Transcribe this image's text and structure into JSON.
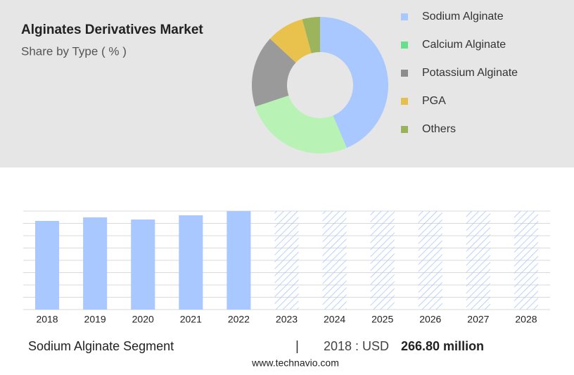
{
  "chart_data": [
    {
      "type": "pie",
      "title": "Alginates Derivatives Market",
      "subtitle": "Share by Type ( % )",
      "donut": true,
      "categories": [
        "Sodium Alginate",
        "Calcium Alginate",
        "Potassium Alginate",
        "PGA",
        "Others"
      ],
      "values": [
        43.6,
        26.3,
        17,
        8.9,
        4.2
      ],
      "colors": [
        "#a8c8ff",
        "#b8f2b4",
        "#9a9a9a",
        "#e8c24c",
        "#9cb45c"
      ],
      "legend_colors": [
        "#a8c8ff",
        "#66e08e",
        "#8c8c8c",
        "#e6c04c",
        "#9ab35a"
      ],
      "legend": "right"
    },
    {
      "type": "bar",
      "title": "Sodium Alginate Segment",
      "categories": [
        "2018",
        "2019",
        "2020",
        "2021",
        "2022",
        "2023",
        "2024",
        "2025",
        "2026",
        "2027",
        "2028"
      ],
      "values": [
        266.8,
        277.4,
        271.0,
        283.7,
        296.4,
        null,
        null,
        null,
        null,
        null,
        null
      ],
      "value_labels": [
        "266.80 million",
        null,
        null,
        null,
        null,
        null,
        null,
        null,
        null,
        null,
        null
      ],
      "highlight_prefix": "2018 : USD",
      "color": "#a8c8ff",
      "forecast_color": "#a8c8ff",
      "ylim": [
        0,
        296.4
      ],
      "grid": true,
      "source": "www.technavio.com"
    }
  ]
}
